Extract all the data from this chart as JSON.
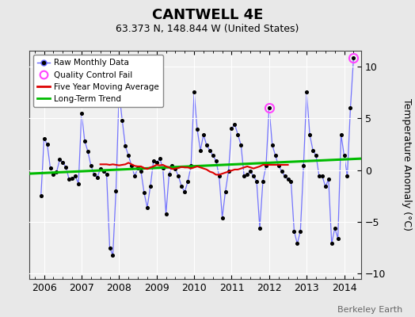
{
  "title": "CANTWELL 4E",
  "subtitle": "63.373 N, 148.844 W (United States)",
  "ylabel": "Temperature Anomaly (°C)",
  "watermark": "Berkeley Earth",
  "bg_color": "#e8e8e8",
  "plot_bg_color": "#f0f0f0",
  "ylim": [
    -10.5,
    11.5
  ],
  "xlim": [
    2005.6,
    2014.45
  ],
  "yticks": [
    -10,
    -5,
    0,
    5,
    10
  ],
  "xticks": [
    2006,
    2007,
    2008,
    2009,
    2010,
    2011,
    2012,
    2013,
    2014
  ],
  "raw_data": [
    [
      2005.917,
      -2.5
    ],
    [
      2006.0,
      3.0
    ],
    [
      2006.083,
      2.5
    ],
    [
      2006.167,
      0.2
    ],
    [
      2006.25,
      -0.4
    ],
    [
      2006.333,
      -0.2
    ],
    [
      2006.417,
      1.0
    ],
    [
      2006.5,
      0.7
    ],
    [
      2006.583,
      0.3
    ],
    [
      2006.667,
      -0.9
    ],
    [
      2006.75,
      -0.8
    ],
    [
      2006.833,
      -0.6
    ],
    [
      2006.917,
      -1.3
    ],
    [
      2007.0,
      5.5
    ],
    [
      2007.083,
      2.8
    ],
    [
      2007.167,
      1.8
    ],
    [
      2007.25,
      0.4
    ],
    [
      2007.333,
      -0.4
    ],
    [
      2007.417,
      -0.7
    ],
    [
      2007.5,
      0.1
    ],
    [
      2007.583,
      -0.1
    ],
    [
      2007.667,
      -0.4
    ],
    [
      2007.75,
      -7.5
    ],
    [
      2007.833,
      -8.2
    ],
    [
      2007.917,
      -2.0
    ],
    [
      2008.0,
      7.5
    ],
    [
      2008.083,
      4.8
    ],
    [
      2008.167,
      2.3
    ],
    [
      2008.25,
      1.4
    ],
    [
      2008.333,
      0.4
    ],
    [
      2008.417,
      -0.6
    ],
    [
      2008.5,
      0.2
    ],
    [
      2008.583,
      -0.1
    ],
    [
      2008.667,
      -2.2
    ],
    [
      2008.75,
      -3.6
    ],
    [
      2008.833,
      -1.6
    ],
    [
      2008.917,
      0.9
    ],
    [
      2009.0,
      0.7
    ],
    [
      2009.083,
      1.1
    ],
    [
      2009.167,
      0.2
    ],
    [
      2009.25,
      -4.2
    ],
    [
      2009.333,
      -0.4
    ],
    [
      2009.417,
      0.4
    ],
    [
      2009.5,
      0.1
    ],
    [
      2009.583,
      -0.6
    ],
    [
      2009.667,
      -1.6
    ],
    [
      2009.75,
      -2.1
    ],
    [
      2009.833,
      -1.1
    ],
    [
      2009.917,
      0.4
    ],
    [
      2010.0,
      7.5
    ],
    [
      2010.083,
      3.9
    ],
    [
      2010.167,
      1.9
    ],
    [
      2010.25,
      3.4
    ],
    [
      2010.333,
      2.4
    ],
    [
      2010.417,
      1.9
    ],
    [
      2010.5,
      1.4
    ],
    [
      2010.583,
      0.9
    ],
    [
      2010.667,
      -0.6
    ],
    [
      2010.75,
      -4.6
    ],
    [
      2010.833,
      -2.1
    ],
    [
      2010.917,
      -0.1
    ],
    [
      2011.0,
      4.0
    ],
    [
      2011.083,
      4.4
    ],
    [
      2011.167,
      3.4
    ],
    [
      2011.25,
      2.4
    ],
    [
      2011.333,
      -0.6
    ],
    [
      2011.417,
      -0.4
    ],
    [
      2011.5,
      -0.1
    ],
    [
      2011.583,
      -0.6
    ],
    [
      2011.667,
      -1.1
    ],
    [
      2011.75,
      -5.6
    ],
    [
      2011.833,
      -1.1
    ],
    [
      2011.917,
      0.4
    ],
    [
      2012.0,
      6.0
    ],
    [
      2012.083,
      2.4
    ],
    [
      2012.167,
      1.4
    ],
    [
      2012.25,
      0.4
    ],
    [
      2012.333,
      -0.1
    ],
    [
      2012.417,
      -0.6
    ],
    [
      2012.5,
      -0.9
    ],
    [
      2012.583,
      -1.1
    ],
    [
      2012.667,
      -5.9
    ],
    [
      2012.75,
      -7.1
    ],
    [
      2012.833,
      -5.9
    ],
    [
      2012.917,
      0.4
    ],
    [
      2013.0,
      7.5
    ],
    [
      2013.083,
      3.4
    ],
    [
      2013.167,
      1.9
    ],
    [
      2013.25,
      1.4
    ],
    [
      2013.333,
      -0.6
    ],
    [
      2013.417,
      -0.6
    ],
    [
      2013.5,
      -1.6
    ],
    [
      2013.583,
      -0.9
    ],
    [
      2013.667,
      -7.1
    ],
    [
      2013.75,
      -5.6
    ],
    [
      2013.833,
      -6.6
    ],
    [
      2013.917,
      3.4
    ],
    [
      2014.0,
      1.4
    ],
    [
      2014.083,
      -0.6
    ],
    [
      2014.167,
      6.0
    ],
    [
      2014.25,
      10.8
    ]
  ],
  "moving_avg": [
    [
      2007.5,
      0.55
    ],
    [
      2007.583,
      0.55
    ],
    [
      2007.667,
      0.55
    ],
    [
      2007.75,
      0.5
    ],
    [
      2007.833,
      0.55
    ],
    [
      2007.917,
      0.5
    ],
    [
      2008.0,
      0.45
    ],
    [
      2008.083,
      0.5
    ],
    [
      2008.167,
      0.55
    ],
    [
      2008.25,
      0.7
    ],
    [
      2008.333,
      0.55
    ],
    [
      2008.417,
      0.4
    ],
    [
      2008.5,
      0.35
    ],
    [
      2008.583,
      0.35
    ],
    [
      2008.667,
      0.2
    ],
    [
      2008.75,
      0.1
    ],
    [
      2008.833,
      0.25
    ],
    [
      2008.917,
      0.35
    ],
    [
      2009.0,
      0.5
    ],
    [
      2009.083,
      0.45
    ],
    [
      2009.167,
      0.5
    ],
    [
      2009.25,
      0.35
    ],
    [
      2009.333,
      0.25
    ],
    [
      2009.417,
      0.1
    ],
    [
      2009.5,
      0.15
    ],
    [
      2009.583,
      0.2
    ],
    [
      2009.667,
      0.3
    ],
    [
      2009.75,
      0.25
    ],
    [
      2009.833,
      0.25
    ],
    [
      2009.917,
      0.15
    ],
    [
      2010.0,
      0.25
    ],
    [
      2010.083,
      0.35
    ],
    [
      2010.167,
      0.25
    ],
    [
      2010.25,
      0.15
    ],
    [
      2010.333,
      0.05
    ],
    [
      2010.417,
      -0.15
    ],
    [
      2010.5,
      -0.25
    ],
    [
      2010.583,
      -0.45
    ],
    [
      2010.667,
      -0.45
    ],
    [
      2010.75,
      -0.35
    ],
    [
      2010.833,
      -0.25
    ],
    [
      2010.917,
      -0.15
    ],
    [
      2011.0,
      -0.05
    ],
    [
      2011.083,
      0.05
    ],
    [
      2011.167,
      0.05
    ],
    [
      2011.25,
      0.15
    ],
    [
      2011.333,
      0.25
    ],
    [
      2011.417,
      0.35
    ],
    [
      2011.5,
      0.25
    ],
    [
      2011.583,
      0.15
    ],
    [
      2011.667,
      0.25
    ],
    [
      2011.75,
      0.35
    ],
    [
      2011.833,
      0.5
    ],
    [
      2011.917,
      0.5
    ],
    [
      2012.0,
      0.5
    ],
    [
      2012.083,
      0.5
    ],
    [
      2012.167,
      0.5
    ],
    [
      2012.25,
      0.5
    ],
    [
      2012.333,
      0.5
    ],
    [
      2012.417,
      0.5
    ],
    [
      2012.5,
      0.5
    ]
  ],
  "trend_x": [
    2005.6,
    2014.45
  ],
  "trend_y": [
    -0.35,
    1.1
  ],
  "qc_fail_points": [
    [
      2012.0,
      6.0
    ],
    [
      2014.25,
      10.8
    ]
  ],
  "line_color": "#6666ff",
  "marker_color": "#000000",
  "moving_avg_color": "#dd0000",
  "trend_color": "#00bb00",
  "qc_color": "#ff44ff",
  "grid_color": "#ffffff",
  "grid_alpha": 1.0
}
